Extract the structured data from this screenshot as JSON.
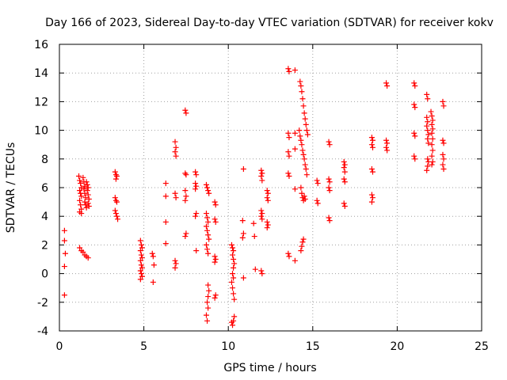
{
  "chart_data": {
    "type": "scatter",
    "title": "Day 166 of 2023, Sidereal Day-to-day VTEC variation (SDTVAR) for receiver kokv",
    "xlabel": "GPS time / hours",
    "ylabel": "SDTVAR / TECUs",
    "xlim": [
      0,
      25
    ],
    "ylim": [
      -4,
      16
    ],
    "xticks": [
      0,
      5,
      10,
      15,
      20,
      25
    ],
    "yticks": [
      -4,
      -2,
      0,
      2,
      4,
      6,
      8,
      10,
      12,
      14,
      16
    ],
    "grid": true,
    "marker": "+",
    "color": "#ff0000",
    "series": [
      {
        "name": "SDTVAR",
        "points": [
          [
            0.3,
            3.0
          ],
          [
            0.3,
            2.3
          ],
          [
            0.35,
            1.4
          ],
          [
            0.3,
            0.5
          ],
          [
            0.3,
            -1.5
          ],
          [
            1.15,
            6.8
          ],
          [
            1.2,
            6.5
          ],
          [
            1.25,
            6.3
          ],
          [
            1.3,
            6.0
          ],
          [
            1.2,
            5.8
          ],
          [
            1.25,
            5.6
          ],
          [
            1.3,
            5.4
          ],
          [
            1.2,
            5.1
          ],
          [
            1.25,
            4.8
          ],
          [
            1.3,
            4.5
          ],
          [
            1.2,
            4.3
          ],
          [
            1.3,
            4.2
          ],
          [
            1.4,
            6.7
          ],
          [
            1.45,
            6.4
          ],
          [
            1.5,
            6.1
          ],
          [
            1.45,
            5.9
          ],
          [
            1.5,
            5.6
          ],
          [
            1.55,
            5.3
          ],
          [
            1.5,
            5.0
          ],
          [
            1.55,
            4.8
          ],
          [
            1.6,
            4.6
          ],
          [
            1.6,
            6.4
          ],
          [
            1.65,
            6.2
          ],
          [
            1.7,
            6.0
          ],
          [
            1.65,
            5.8
          ],
          [
            1.7,
            5.5
          ],
          [
            1.75,
            5.2
          ],
          [
            1.7,
            4.9
          ],
          [
            1.75,
            4.7
          ],
          [
            1.2,
            1.8
          ],
          [
            1.3,
            1.6
          ],
          [
            1.4,
            1.5
          ],
          [
            1.5,
            1.3
          ],
          [
            1.6,
            1.2
          ],
          [
            1.7,
            1.1
          ],
          [
            3.3,
            7.1
          ],
          [
            3.35,
            6.9
          ],
          [
            3.4,
            6.8
          ],
          [
            3.35,
            6.6
          ],
          [
            3.3,
            5.3
          ],
          [
            3.35,
            5.1
          ],
          [
            3.4,
            5.0
          ],
          [
            3.3,
            4.4
          ],
          [
            3.35,
            4.2
          ],
          [
            3.4,
            4.0
          ],
          [
            3.45,
            3.8
          ],
          [
            4.8,
            2.3
          ],
          [
            4.85,
            2.0
          ],
          [
            4.9,
            1.8
          ],
          [
            4.8,
            1.6
          ],
          [
            4.85,
            1.3
          ],
          [
            4.9,
            1.1
          ],
          [
            4.8,
            0.9
          ],
          [
            4.85,
            0.6
          ],
          [
            4.9,
            0.4
          ],
          [
            4.8,
            0.2
          ],
          [
            4.85,
            0.0
          ],
          [
            4.9,
            -0.2
          ],
          [
            4.8,
            -0.4
          ],
          [
            5.5,
            1.4
          ],
          [
            5.55,
            1.2
          ],
          [
            5.6,
            0.6
          ],
          [
            5.55,
            -0.6
          ],
          [
            6.3,
            6.3
          ],
          [
            6.3,
            5.4
          ],
          [
            6.3,
            3.6
          ],
          [
            6.3,
            2.1
          ],
          [
            6.85,
            9.2
          ],
          [
            6.9,
            8.8
          ],
          [
            6.85,
            8.5
          ],
          [
            6.9,
            8.2
          ],
          [
            6.85,
            5.6
          ],
          [
            6.9,
            5.3
          ],
          [
            6.85,
            0.9
          ],
          [
            6.9,
            0.7
          ],
          [
            6.85,
            0.4
          ],
          [
            7.45,
            11.4
          ],
          [
            7.5,
            11.2
          ],
          [
            7.45,
            7.0
          ],
          [
            7.5,
            6.9
          ],
          [
            7.45,
            5.8
          ],
          [
            7.5,
            5.4
          ],
          [
            7.45,
            5.1
          ],
          [
            7.5,
            2.8
          ],
          [
            7.45,
            2.6
          ],
          [
            8.05,
            7.1
          ],
          [
            8.1,
            6.9
          ],
          [
            8.05,
            6.3
          ],
          [
            8.1,
            6.1
          ],
          [
            8.05,
            5.9
          ],
          [
            8.1,
            4.2
          ],
          [
            8.05,
            4.0
          ],
          [
            8.1,
            1.6
          ],
          [
            8.7,
            6.2
          ],
          [
            8.75,
            6.0
          ],
          [
            8.8,
            5.8
          ],
          [
            8.85,
            5.6
          ],
          [
            8.7,
            4.2
          ],
          [
            8.75,
            3.9
          ],
          [
            8.8,
            3.6
          ],
          [
            8.7,
            3.3
          ],
          [
            8.75,
            3.0
          ],
          [
            8.8,
            2.7
          ],
          [
            8.85,
            2.4
          ],
          [
            8.7,
            2.0
          ],
          [
            8.75,
            1.7
          ],
          [
            8.8,
            1.4
          ],
          [
            8.8,
            -0.8
          ],
          [
            8.85,
            -1.2
          ],
          [
            8.8,
            -1.6
          ],
          [
            8.75,
            -2.0
          ],
          [
            8.8,
            -2.4
          ],
          [
            8.7,
            -2.9
          ],
          [
            8.75,
            -3.3
          ],
          [
            9.2,
            5.0
          ],
          [
            9.25,
            4.8
          ],
          [
            9.2,
            3.8
          ],
          [
            9.25,
            3.6
          ],
          [
            9.2,
            1.2
          ],
          [
            9.25,
            1.0
          ],
          [
            9.2,
            0.8
          ],
          [
            9.25,
            -1.5
          ],
          [
            9.2,
            -1.7
          ],
          [
            10.2,
            2.0
          ],
          [
            10.25,
            1.8
          ],
          [
            10.3,
            1.6
          ],
          [
            10.25,
            1.3
          ],
          [
            10.3,
            1.0
          ],
          [
            10.35,
            0.7
          ],
          [
            10.3,
            0.4
          ],
          [
            10.25,
            0.0
          ],
          [
            10.3,
            -0.3
          ],
          [
            10.2,
            -0.6
          ],
          [
            10.25,
            -1.0
          ],
          [
            10.3,
            -1.4
          ],
          [
            10.35,
            -1.8
          ],
          [
            10.2,
            -3.4
          ],
          [
            10.25,
            -3.6
          ],
          [
            10.3,
            -3.3
          ],
          [
            10.35,
            -3.0
          ],
          [
            10.9,
            7.3
          ],
          [
            10.85,
            3.7
          ],
          [
            10.9,
            2.8
          ],
          [
            10.85,
            2.5
          ],
          [
            10.9,
            -0.3
          ],
          [
            11.5,
            3.5
          ],
          [
            11.55,
            2.6
          ],
          [
            11.6,
            0.3
          ],
          [
            11.95,
            7.2
          ],
          [
            12.0,
            7.0
          ],
          [
            11.95,
            6.8
          ],
          [
            12.0,
            6.5
          ],
          [
            11.95,
            4.4
          ],
          [
            12.0,
            4.2
          ],
          [
            11.95,
            4.0
          ],
          [
            12.0,
            3.8
          ],
          [
            11.95,
            0.2
          ],
          [
            12.0,
            0.0
          ],
          [
            12.3,
            5.8
          ],
          [
            12.35,
            5.6
          ],
          [
            12.3,
            5.3
          ],
          [
            12.35,
            5.1
          ],
          [
            12.3,
            3.6
          ],
          [
            12.35,
            3.4
          ],
          [
            12.3,
            3.2
          ],
          [
            13.55,
            14.3
          ],
          [
            13.6,
            14.1
          ],
          [
            13.55,
            9.8
          ],
          [
            13.6,
            9.5
          ],
          [
            13.55,
            8.5
          ],
          [
            13.6,
            8.2
          ],
          [
            13.55,
            7.0
          ],
          [
            13.6,
            6.8
          ],
          [
            13.55,
            1.4
          ],
          [
            13.6,
            1.2
          ],
          [
            13.95,
            14.2
          ],
          [
            13.95,
            9.8
          ],
          [
            13.95,
            8.7
          ],
          [
            13.95,
            5.9
          ],
          [
            13.95,
            0.9
          ],
          [
            14.25,
            13.4
          ],
          [
            14.3,
            13.1
          ],
          [
            14.35,
            12.7
          ],
          [
            14.4,
            12.2
          ],
          [
            14.45,
            11.7
          ],
          [
            14.5,
            11.2
          ],
          [
            14.55,
            10.8
          ],
          [
            14.6,
            10.4
          ],
          [
            14.65,
            10.0
          ],
          [
            14.7,
            9.7
          ],
          [
            14.2,
            10.0
          ],
          [
            14.25,
            9.6
          ],
          [
            14.3,
            9.3
          ],
          [
            14.35,
            9.0
          ],
          [
            14.4,
            8.6
          ],
          [
            14.45,
            8.3
          ],
          [
            14.5,
            8.0
          ],
          [
            14.55,
            7.6
          ],
          [
            14.6,
            7.3
          ],
          [
            14.65,
            6.9
          ],
          [
            14.3,
            6.0
          ],
          [
            14.35,
            5.6
          ],
          [
            14.4,
            5.3
          ],
          [
            14.45,
            5.1
          ],
          [
            14.5,
            5.4
          ],
          [
            14.55,
            5.2
          ],
          [
            14.3,
            1.6
          ],
          [
            14.35,
            1.9
          ],
          [
            14.4,
            2.2
          ],
          [
            14.45,
            2.4
          ],
          [
            15.25,
            6.5
          ],
          [
            15.3,
            6.3
          ],
          [
            15.25,
            5.1
          ],
          [
            15.3,
            4.9
          ],
          [
            15.95,
            9.2
          ],
          [
            16.0,
            9.0
          ],
          [
            15.95,
            6.6
          ],
          [
            16.0,
            6.4
          ],
          [
            15.95,
            6.0
          ],
          [
            16.0,
            5.8
          ],
          [
            15.95,
            3.9
          ],
          [
            16.0,
            3.7
          ],
          [
            16.85,
            7.8
          ],
          [
            16.9,
            7.6
          ],
          [
            16.85,
            7.4
          ],
          [
            16.9,
            7.1
          ],
          [
            16.85,
            6.6
          ],
          [
            16.9,
            6.4
          ],
          [
            16.85,
            4.9
          ],
          [
            16.9,
            4.7
          ],
          [
            18.5,
            9.5
          ],
          [
            18.55,
            9.3
          ],
          [
            18.5,
            9.0
          ],
          [
            18.55,
            8.8
          ],
          [
            18.5,
            7.3
          ],
          [
            18.55,
            7.1
          ],
          [
            18.5,
            5.5
          ],
          [
            18.55,
            5.3
          ],
          [
            18.5,
            5.0
          ],
          [
            19.35,
            13.3
          ],
          [
            19.4,
            13.1
          ],
          [
            19.35,
            9.3
          ],
          [
            19.4,
            9.1
          ],
          [
            19.35,
            8.8
          ],
          [
            19.4,
            8.6
          ],
          [
            21.0,
            13.3
          ],
          [
            21.05,
            13.1
          ],
          [
            21.0,
            11.8
          ],
          [
            21.05,
            11.6
          ],
          [
            21.0,
            9.8
          ],
          [
            21.05,
            9.6
          ],
          [
            21.0,
            8.2
          ],
          [
            21.05,
            8.0
          ],
          [
            21.75,
            12.5
          ],
          [
            21.8,
            12.2
          ],
          [
            21.75,
            10.9
          ],
          [
            21.8,
            10.6
          ],
          [
            21.75,
            10.3
          ],
          [
            21.8,
            10.0
          ],
          [
            21.85,
            9.7
          ],
          [
            21.8,
            9.4
          ],
          [
            21.85,
            9.1
          ],
          [
            21.8,
            8.0
          ],
          [
            21.85,
            7.8
          ],
          [
            21.8,
            7.5
          ],
          [
            21.75,
            7.2
          ],
          [
            22.0,
            11.3
          ],
          [
            22.05,
            11.0
          ],
          [
            22.1,
            10.7
          ],
          [
            22.05,
            10.4
          ],
          [
            22.1,
            10.1
          ],
          [
            22.05,
            9.8
          ],
          [
            22.1,
            9.4
          ],
          [
            22.05,
            9.0
          ],
          [
            22.1,
            8.6
          ],
          [
            22.05,
            8.2
          ],
          [
            22.1,
            7.8
          ],
          [
            22.05,
            7.6
          ],
          [
            22.7,
            12.0
          ],
          [
            22.75,
            11.7
          ],
          [
            22.7,
            9.3
          ],
          [
            22.75,
            9.1
          ],
          [
            22.7,
            8.3
          ],
          [
            22.75,
            8.0
          ],
          [
            22.7,
            7.6
          ],
          [
            22.75,
            7.3
          ]
        ]
      }
    ]
  }
}
